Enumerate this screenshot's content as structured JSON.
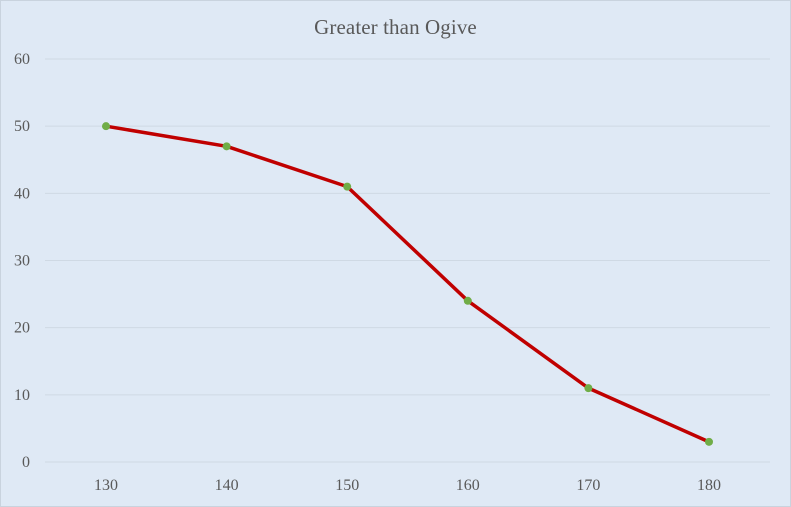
{
  "chart_data": {
    "type": "line",
    "title": "Greater than Ogive",
    "xlabel": "",
    "ylabel": "",
    "x": [
      130,
      140,
      150,
      160,
      170,
      180
    ],
    "series": [
      {
        "values": [
          50,
          47,
          41,
          24,
          11,
          3
        ]
      }
    ],
    "ylim": [
      0,
      60
    ],
    "yticks": [
      0,
      10,
      20,
      30,
      40,
      50,
      60
    ],
    "xtick_labels": [
      "130",
      "140",
      "150",
      "160",
      "170",
      "180"
    ],
    "grid": "horizontal",
    "legend": "none",
    "colors": {
      "background": "#dfe9f5",
      "line": "#c00000",
      "marker": "#70ad47",
      "gridline": "#cfd9e4",
      "text": "#595959"
    }
  }
}
